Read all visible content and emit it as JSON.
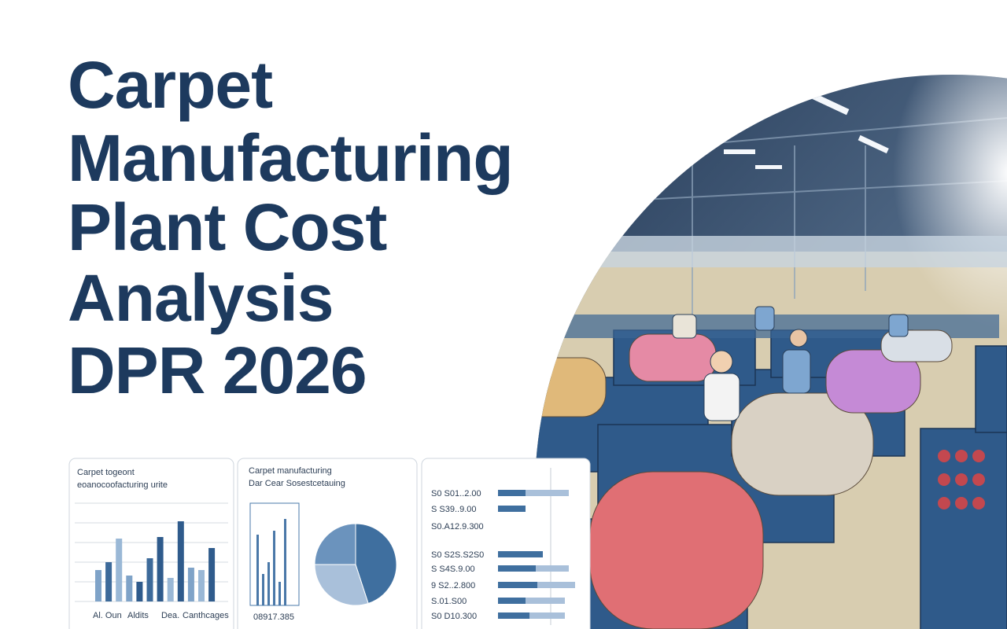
{
  "title_lines": [
    "Carpet",
    "Manufacturing",
    "Plant Cost",
    "Analysis",
    "DPR 2026"
  ],
  "cards": [
    {
      "title_lines": [
        "Carpet togeont",
        "eoanocoofacturing urite"
      ],
      "values": [
        40,
        50,
        80,
        33,
        25,
        55,
        82,
        30,
        102,
        43,
        40,
        68
      ],
      "colors": [
        "#7fa3c8",
        "#3d6a9a",
        "#9ab8d6",
        "#7fa3c8",
        "#2f5b8c",
        "#3d6a9a",
        "#2f5b8c",
        "#9ab8d6",
        "#2f5b8c",
        "#7fa3c8",
        "#9ab8d6",
        "#2f5b8c"
      ],
      "labels": [
        "Al. Oun",
        "Aldits",
        "Dea.",
        "Canthcages"
      ]
    },
    {
      "title_lines": [
        "Carpet manufacturing",
        "Dar Cear Sosestcetauing"
      ],
      "bars": [
        90,
        40,
        55,
        95,
        30,
        110
      ],
      "bar_color": "#4a78a8",
      "pie": [
        45,
        30,
        25
      ],
      "pie_colors": [
        "#3f6f9f",
        "#a9c0da",
        "#6b93bd"
      ],
      "footer": "08917.385"
    },
    {
      "rows": [
        {
          "label": "S0  S01..2.00",
          "values": [
            35,
            55
          ]
        },
        {
          "label": "S  S39..9.00",
          "values": [
            35,
            0
          ]
        },
        {
          "label": "S0.A12.9.300",
          "values": [
            0,
            0
          ]
        },
        {
          "label": "S0  S2S.S2S0",
          "values": [
            57,
            0
          ]
        },
        {
          "label": "S  S4S.9.00",
          "values": [
            48,
            42
          ]
        },
        {
          "label": "9  S2..2.800",
          "values": [
            50,
            48
          ]
        },
        {
          "label": "S.01.S00",
          "values": [
            35,
            50
          ]
        },
        {
          "label": "S0  D10.300",
          "values": [
            40,
            45
          ]
        }
      ],
      "colors": [
        "#3f6f9f",
        "#a9c0da"
      ]
    }
  ]
}
